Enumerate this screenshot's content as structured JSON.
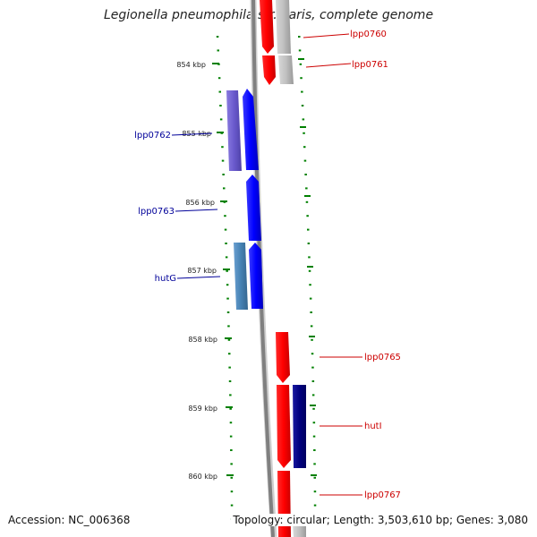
{
  "title": "Legionella pneumophila str. Paris, complete genome",
  "accession": "Accession: NC_006368",
  "topology": "Topology: circular; Length: 3,503,610 bp; Genes: 3,080",
  "colors": {
    "forward_gene": "#ff0000",
    "reverse_gene": "#0000ff",
    "navy_gene": "#000080",
    "purple_gene": "#6a5acd",
    "steel_gene": "#4682b4",
    "grey_gene": "#c0c0c0",
    "tick": "#008000",
    "backbone": "#808080"
  },
  "ruler": {
    "ticks": [
      {
        "label": "854 kbp"
      },
      {
        "label": "855 kbp"
      },
      {
        "label": "856 kbp"
      },
      {
        "label": "857 kbp"
      },
      {
        "label": "858 kbp"
      },
      {
        "label": "859 kbp"
      },
      {
        "label": "860 kbp"
      }
    ]
  },
  "genes": [
    {
      "label": "lpp0760",
      "strand": "forward"
    },
    {
      "label": "lpp0761",
      "strand": "forward"
    },
    {
      "label": "lpp0762",
      "strand": "reverse"
    },
    {
      "label": "lpp0763",
      "strand": "reverse"
    },
    {
      "label": "hutG",
      "strand": "reverse"
    },
    {
      "label": "lpp0765",
      "strand": "forward"
    },
    {
      "label": "hutI",
      "strand": "forward"
    },
    {
      "label": "lpp0767",
      "strand": "forward"
    }
  ]
}
